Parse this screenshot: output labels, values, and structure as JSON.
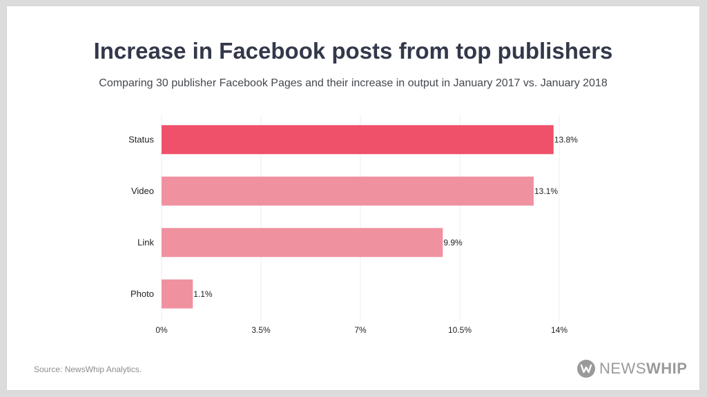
{
  "title": "Increase in Facebook posts from top publishers",
  "subtitle": "Comparing 30 publisher Facebook Pages and their increase in output in January 2017 vs. January 2018",
  "source": "Source: NewsWhip Analytics.",
  "logo": {
    "text_light": "NEWS",
    "text_bold": "WHIP",
    "mark_letter": "W"
  },
  "colors": {
    "highlight": "#ef516a",
    "bar": "#f0919f",
    "grid": "#eeeeee",
    "text": "#222222"
  },
  "chart_data": {
    "type": "bar",
    "orientation": "horizontal",
    "title": "Increase in Facebook posts from top publishers",
    "subtitle": "Comparing 30 publisher Facebook Pages and their increase in output in January 2017 vs. January 2018",
    "xlabel": "",
    "ylabel": "",
    "categories": [
      "Status",
      "Video",
      "Link",
      "Photo"
    ],
    "values": [
      13.8,
      13.1,
      9.9,
      1.1
    ],
    "value_labels": [
      "13.8%",
      "13.1%",
      "9.9%",
      "1.1%"
    ],
    "highlighted": [
      "Status"
    ],
    "xlim": [
      0,
      14
    ],
    "xticks": [
      0,
      3.5,
      7,
      10.5,
      14
    ],
    "xtick_labels": [
      "0%",
      "3.5%",
      "7%",
      "10.5%",
      "14%"
    ],
    "grid": "vertical",
    "legend": "none"
  }
}
